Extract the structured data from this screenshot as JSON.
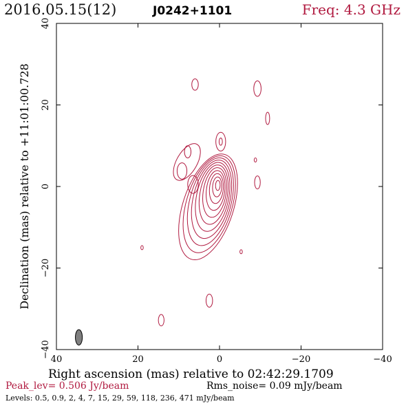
{
  "header": {
    "date_label": "2016.05.15(12)",
    "source_name": "J0242+1101",
    "freq_label": "Freq: 4.3 GHz"
  },
  "footer": {
    "peak_label": "Peak_lev=  0.506 Jy/beam",
    "rms_label": "Rms_noise= 0.09 mJy/beam",
    "levels_label": "Levels: 0.5, 0.9,   2,   4,   7,  15,  29,  59, 118, 236, 471 mJy/beam"
  },
  "colors": {
    "contour": "#b0193f",
    "beam_fill": "#7f7f7f",
    "axis": "#000000"
  },
  "chart_data": {
    "type": "contour",
    "xlabel": "Right ascension (mas) relative to 02:42:29.1709",
    "ylabel": "Declination (mas) relative to +11:01:00.728",
    "xlim": [
      40,
      -40
    ],
    "ylim": [
      -40,
      40
    ],
    "x_ticks": [
      40,
      20,
      0,
      -20,
      -40
    ],
    "y_ticks": [
      -40,
      -20,
      0,
      20,
      40
    ],
    "x_tick_labels": [
      "40",
      "20",
      "0",
      "−20",
      "−40"
    ],
    "y_tick_labels": [
      "−40",
      "−20",
      "0",
      "20",
      "40"
    ],
    "levels_mJy_per_beam": [
      0.5,
      0.9,
      2,
      4,
      7,
      15,
      29,
      59,
      118,
      236,
      471
    ],
    "peak_Jy_per_beam": 0.506,
    "rms_noise_mJy_per_beam": 0.09,
    "beam": {
      "x": 34.5,
      "y": -37,
      "major_mas": 3.8,
      "minor_mas": 1.7,
      "pa_deg": 0
    },
    "core": {
      "x": 0.3,
      "y": 0.5,
      "rx_max": 6.2,
      "ry_max": 13.5,
      "ext_x": 2.5,
      "ext_y": -5.5,
      "angle_deg": 18,
      "count": 11,
      "level_start": 0
    },
    "blobs": [
      {
        "x": 8.0,
        "y": 6.0,
        "rx": 2.5,
        "ry": 5.0,
        "angle": 30,
        "level": 0
      },
      {
        "x": 9.2,
        "y": 3.8,
        "rx": 1.2,
        "ry": 2.0,
        "angle": 0,
        "level": 1
      },
      {
        "x": 7.8,
        "y": 8.5,
        "rx": 0.8,
        "ry": 1.5,
        "angle": 0,
        "level": 1
      },
      {
        "x": 6.5,
        "y": 0.5,
        "rx": 1.3,
        "ry": 2.2,
        "angle": 0,
        "level": 0
      },
      {
        "x": -0.3,
        "y": 11.0,
        "rx": 1.2,
        "ry": 2.3,
        "angle": 0,
        "level": 0
      },
      {
        "x": -0.3,
        "y": 11.0,
        "rx": 0.4,
        "ry": 0.9,
        "angle": 0,
        "level": 1
      },
      {
        "x": 6.0,
        "y": 25.0,
        "rx": 0.8,
        "ry": 1.4,
        "angle": 0,
        "level": 0
      },
      {
        "x": -9.3,
        "y": 24.0,
        "rx": 0.9,
        "ry": 1.9,
        "angle": 0,
        "level": 0
      },
      {
        "x": -11.8,
        "y": 16.7,
        "rx": 0.5,
        "ry": 1.5,
        "angle": 0,
        "level": 0
      },
      {
        "x": -8.8,
        "y": 6.5,
        "rx": 0.3,
        "ry": 0.5,
        "angle": 0,
        "level": 0
      },
      {
        "x": -9.3,
        "y": 1.0,
        "rx": 0.7,
        "ry": 1.6,
        "angle": 0,
        "level": 0
      },
      {
        "x": 19.0,
        "y": -15.0,
        "rx": 0.3,
        "ry": 0.5,
        "angle": 0,
        "level": 0
      },
      {
        "x": -5.3,
        "y": -16.0,
        "rx": 0.3,
        "ry": 0.5,
        "angle": 0,
        "level": 0
      },
      {
        "x": 2.5,
        "y": -28.0,
        "rx": 0.8,
        "ry": 1.6,
        "angle": 0,
        "level": 0
      },
      {
        "x": 14.3,
        "y": -32.8,
        "rx": 0.7,
        "ry": 1.4,
        "angle": 0,
        "level": 0
      }
    ]
  }
}
